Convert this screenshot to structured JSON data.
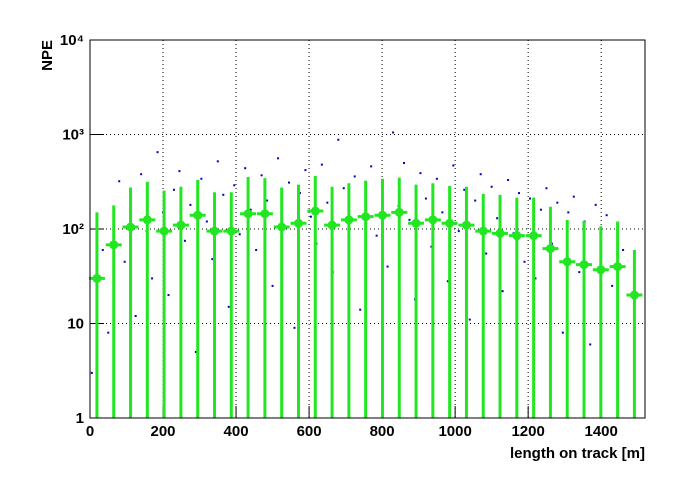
{
  "chart_data": {
    "type": "scatter-profile",
    "xlabel": "length on track [m]",
    "ylabel": "NPE",
    "xlim": [
      0,
      1520
    ],
    "ylim": [
      1,
      10000
    ],
    "log_y": true,
    "grid": true,
    "xticks": [
      0,
      200,
      400,
      600,
      800,
      1000,
      1200,
      1400
    ],
    "yticks": [
      1,
      10,
      {
        "value": 100,
        "label": "10²"
      },
      {
        "value": 1000,
        "label": "10³"
      },
      {
        "value": 10000,
        "label": "10⁴"
      }
    ],
    "scatter": {
      "color": "#0000cc",
      "x": [
        5,
        20,
        35,
        50,
        65,
        80,
        95,
        110,
        125,
        140,
        155,
        170,
        185,
        200,
        215,
        230,
        245,
        260,
        275,
        290,
        305,
        320,
        335,
        350,
        365,
        380,
        395,
        410,
        425,
        440,
        455,
        470,
        485,
        500,
        515,
        530,
        545,
        560,
        575,
        590,
        605,
        620,
        635,
        650,
        665,
        680,
        695,
        710,
        725,
        740,
        755,
        770,
        785,
        800,
        815,
        830,
        845,
        860,
        875,
        890,
        905,
        920,
        935,
        950,
        965,
        980,
        995,
        1010,
        1025,
        1040,
        1055,
        1070,
        1085,
        1100,
        1115,
        1130,
        1145,
        1160,
        1175,
        1190,
        1205,
        1220,
        1235,
        1250,
        1265,
        1280,
        1295,
        1310,
        1325,
        1340,
        1355,
        1370,
        1385,
        1400,
        1415,
        1430,
        1445,
        1460
      ],
      "y": [
        3,
        25,
        60,
        8,
        140,
        320,
        45,
        210,
        12,
        380,
        95,
        30,
        650,
        150,
        20,
        260,
        410,
        75,
        180,
        5,
        340,
        120,
        48,
        520,
        230,
        15,
        290,
        88,
        440,
        160,
        60,
        370,
        200,
        25,
        560,
        110,
        310,
        9,
        240,
        420,
        135,
        70,
        480,
        190,
        35,
        880,
        270,
        105,
        360,
        14,
        220,
        460,
        85,
        300,
        40,
        1050,
        175,
        500,
        125,
        18,
        390,
        210,
        65,
        340,
        150,
        28,
        470,
        95,
        260,
        11,
        200,
        380,
        55,
        280,
        130,
        22,
        330,
        90,
        240,
        45,
        210,
        30,
        160,
        270,
        70,
        190,
        8,
        150,
        220,
        35,
        120,
        6,
        180,
        90,
        140,
        25,
        110,
        60
      ]
    },
    "profile": {
      "color": "#22e622",
      "x": [
        19,
        65,
        111,
        157,
        203,
        249,
        295,
        341,
        387,
        433,
        479,
        525,
        571,
        617,
        663,
        709,
        755,
        801,
        847,
        893,
        939,
        985,
        1031,
        1077,
        1123,
        1169,
        1215,
        1261,
        1307,
        1353,
        1399,
        1445,
        1491
      ],
      "values": [
        30,
        68,
        105,
        125,
        95,
        110,
        140,
        95,
        95,
        145,
        145,
        105,
        115,
        155,
        110,
        125,
        135,
        140,
        150,
        115,
        125,
        115,
        110,
        95,
        90,
        85,
        85,
        62,
        45,
        42,
        37,
        40,
        20
      ],
      "errors": [
        120,
        110,
        170,
        190,
        160,
        170,
        190,
        150,
        150,
        210,
        200,
        170,
        180,
        210,
        170,
        180,
        190,
        200,
        200,
        180,
        180,
        170,
        170,
        140,
        140,
        130,
        130,
        110,
        80,
        80,
        70,
        80,
        40
      ]
    }
  }
}
